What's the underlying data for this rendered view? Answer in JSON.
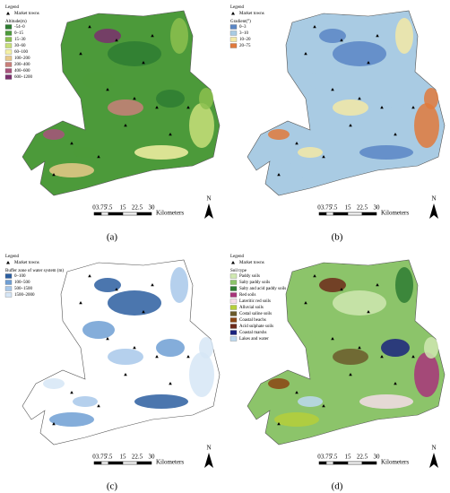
{
  "panels": [
    {
      "caption": "(a)",
      "legend_title": "Legend",
      "marker_label": "Market towns",
      "class_title": "Altitude(m)",
      "classes": [
        {
          "label": "-54–0",
          "color": "#2e7d32"
        },
        {
          "label": "0–15",
          "color": "#4c9a3a"
        },
        {
          "label": "15–30",
          "color": "#8cc04f"
        },
        {
          "label": "30–60",
          "color": "#c8df7a"
        },
        {
          "label": "60–100",
          "color": "#f4f0a4"
        },
        {
          "label": "100–200",
          "color": "#e8c98a"
        },
        {
          "label": "200–400",
          "color": "#c97f7a"
        },
        {
          "label": "400–600",
          "color": "#a8527c"
        },
        {
          "label": "600–1200",
          "color": "#7b2f6e"
        }
      ]
    },
    {
      "caption": "(b)",
      "legend_title": "Legend",
      "marker_label": "Market towns",
      "class_title": "Gradient(°)",
      "classes": [
        {
          "label": "0–3",
          "color": "#5b86c5"
        },
        {
          "label": "3–10",
          "color": "#a9cbe3"
        },
        {
          "label": "10–20",
          "color": "#f3e9a6"
        },
        {
          "label": "20–75",
          "color": "#e07a3c"
        }
      ]
    },
    {
      "caption": "(c)",
      "legend_title": "Legend",
      "marker_label": "Market towns",
      "class_title": "Buffer zone of water system (m)",
      "classes": [
        {
          "label": "0–100",
          "color": "#2b5ea0"
        },
        {
          "label": "100–500",
          "color": "#6f9fd4"
        },
        {
          "label": "500–1500",
          "color": "#a8c8ea"
        },
        {
          "label": "1500–2000",
          "color": "#d6e6f6"
        }
      ]
    },
    {
      "caption": "(d)",
      "legend_title": "Legend",
      "marker_label": "Market towns",
      "class_title": "Soil type",
      "classes": [
        {
          "label": "Paddy soils",
          "color": "#cfe8b0"
        },
        {
          "label": "Salty paddy soils",
          "color": "#8cc46a"
        },
        {
          "label": "Salty and acid paddy soils",
          "color": "#2e7d32"
        },
        {
          "label": "Red soils",
          "color": "#a8347a"
        },
        {
          "label": "Lateritic red soils",
          "color": "#f5dde8"
        },
        {
          "label": "Alluvial soils",
          "color": "#b5cf3a"
        },
        {
          "label": "Costal saline soils",
          "color": "#6b5a2a"
        },
        {
          "label": "Coastal beachs",
          "color": "#8b4513"
        },
        {
          "label": "Acid sulphate soils",
          "color": "#6d2a1a"
        },
        {
          "label": "Coastal marshs",
          "color": "#1a237e"
        },
        {
          "label": "Lakes and water",
          "color": "#bcd9f0"
        }
      ]
    }
  ],
  "scale_bar": {
    "labels": [
      "0",
      "3.75",
      "7.5",
      "15",
      "22.5",
      "30"
    ],
    "unit": "Kilometers"
  },
  "north": "N"
}
